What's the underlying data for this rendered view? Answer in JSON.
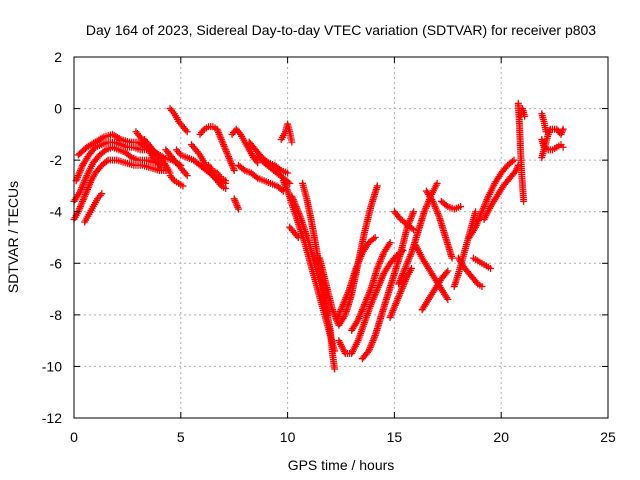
{
  "chart_data": {
    "type": "scatter",
    "title": "Day 164 of 2023, Sidereal Day-to-day VTEC variation (SDTVAR) for receiver p803",
    "xlabel": "GPS time / hours",
    "ylabel": "SDTVAR / TECUs",
    "xlim": [
      0,
      25
    ],
    "ylim": [
      -12,
      2
    ],
    "xticks": [
      0,
      5,
      10,
      15,
      20,
      25
    ],
    "yticks": [
      -12,
      -10,
      -8,
      -6,
      -4,
      -2,
      0,
      2
    ],
    "xtick_labels": [
      "0",
      "5",
      "10",
      "15",
      "20",
      "25"
    ],
    "ytick_labels": [
      "-12",
      "-10",
      "-8",
      "-6",
      "-4",
      "-2",
      "0",
      "2"
    ],
    "grid": true,
    "marker": "plus",
    "color": "#ff0000",
    "series": [
      {
        "x": [
          0.0,
          0.2,
          0.4,
          0.6,
          0.8,
          1.0,
          1.3,
          1.6,
          2.0,
          2.4,
          2.8,
          3.2,
          3.6,
          4.0,
          4.3
        ],
        "y": [
          -4.3,
          -4.0,
          -3.6,
          -3.2,
          -2.8,
          -2.5,
          -2.2,
          -2.0,
          -2.0,
          -2.1,
          -2.2,
          -2.2,
          -2.3,
          -2.4,
          -2.4
        ]
      },
      {
        "x": [
          0.0,
          0.3,
          0.6,
          0.9,
          1.2,
          1.5,
          1.8,
          2.1,
          2.4,
          2.7,
          3.0,
          3.4,
          3.8
        ],
        "y": [
          -3.6,
          -3.2,
          -2.6,
          -2.1,
          -1.8,
          -1.6,
          -1.5,
          -1.6,
          -1.7,
          -1.9,
          -2.0,
          -2.0,
          -2.1
        ]
      },
      {
        "x": [
          0.1,
          0.4,
          0.7,
          1.0,
          1.3,
          1.6,
          1.9,
          2.2,
          2.5,
          2.8,
          3.1,
          3.4
        ],
        "y": [
          -2.8,
          -2.2,
          -1.8,
          -1.5,
          -1.4,
          -1.3,
          -1.3,
          -1.4,
          -1.5,
          -1.5,
          -1.6,
          -1.6
        ]
      },
      {
        "x": [
          0.5,
          0.7,
          0.9,
          1.1,
          1.3
        ],
        "y": [
          -4.4,
          -4.1,
          -3.8,
          -3.5,
          -3.3
        ]
      },
      {
        "x": [
          0.2,
          0.6,
          1.0,
          1.4,
          1.8,
          2.2,
          2.6,
          3.0,
          3.4,
          3.8,
          4.2,
          4.6,
          5.0
        ],
        "y": [
          -1.8,
          -1.5,
          -1.3,
          -1.1,
          -1.0,
          -1.2,
          -1.3,
          -1.3,
          -1.5,
          -1.7,
          -1.9,
          -2.0,
          -2.2
        ]
      },
      {
        "x": [
          2.9,
          3.1,
          3.3,
          3.5,
          3.7,
          3.9,
          4.1
        ],
        "y": [
          -0.9,
          -1.1,
          -1.3,
          -1.6,
          -1.9,
          -2.1,
          -2.3
        ]
      },
      {
        "x": [
          3.3,
          3.5,
          3.7,
          3.9,
          4.1,
          4.3,
          4.5
        ],
        "y": [
          -1.2,
          -1.4,
          -1.6,
          -1.8,
          -2.0,
          -2.2,
          -2.5
        ]
      },
      {
        "x": [
          4.3,
          4.5,
          4.7,
          4.9,
          5.1,
          5.3
        ],
        "y": [
          -1.6,
          -1.8,
          -2.0,
          -2.2,
          -2.4,
          -2.6
        ]
      },
      {
        "x": [
          4.5,
          4.7,
          4.9,
          5.1,
          5.3
        ],
        "y": [
          0.0,
          -0.2,
          -0.5,
          -0.7,
          -0.9
        ]
      },
      {
        "x": [
          4.5,
          4.7,
          4.9,
          5.1
        ],
        "y": [
          -2.6,
          -2.8,
          -2.9,
          -3.0
        ]
      },
      {
        "x": [
          4.8,
          5.0,
          5.3,
          5.6,
          5.9,
          6.2,
          6.5,
          6.8,
          7.1
        ],
        "y": [
          -1.6,
          -1.8,
          -1.9,
          -2.0,
          -2.2,
          -2.4,
          -2.6,
          -2.8,
          -2.9
        ]
      },
      {
        "x": [
          5.5,
          5.7,
          5.9,
          6.1,
          6.3,
          6.5,
          6.7,
          6.9,
          7.1
        ],
        "y": [
          -1.4,
          -1.6,
          -1.8,
          -2.1,
          -2.4,
          -2.6,
          -2.8,
          -3.0,
          -3.1
        ]
      },
      {
        "x": [
          5.9,
          6.1,
          6.3,
          6.5,
          6.7,
          6.9,
          7.1,
          7.3,
          7.5
        ],
        "y": [
          -1.0,
          -0.8,
          -0.7,
          -0.7,
          -0.8,
          -1.2,
          -1.6,
          -2.0,
          -2.4
        ]
      },
      {
        "x": [
          6.3,
          6.5,
          6.7,
          6.9,
          7.1
        ],
        "y": [
          -2.2,
          -2.4,
          -2.5,
          -2.7,
          -2.8
        ]
      },
      {
        "x": [
          7.5,
          7.6,
          7.7
        ],
        "y": [
          -3.5,
          -3.7,
          -3.9
        ]
      },
      {
        "x": [
          7.4,
          7.6,
          7.8,
          8.0,
          8.2,
          8.4,
          8.6
        ],
        "y": [
          -1.0,
          -0.8,
          -1.0,
          -1.3,
          -1.6,
          -1.9,
          -2.1
        ]
      },
      {
        "x": [
          7.7,
          8.0,
          8.3,
          8.6,
          8.9,
          9.2,
          9.5,
          9.8
        ],
        "y": [
          -2.2,
          -2.4,
          -2.5,
          -2.7,
          -2.8,
          -2.9,
          -3.0,
          -3.2
        ]
      },
      {
        "x": [
          8.2,
          8.5,
          8.8,
          9.1,
          9.4,
          9.7,
          10.0
        ],
        "y": [
          -1.3,
          -1.6,
          -1.9,
          -2.1,
          -2.2,
          -2.4,
          -2.5
        ]
      },
      {
        "x": [
          8.6,
          8.9,
          9.2,
          9.5,
          9.8,
          10.1
        ],
        "y": [
          -1.8,
          -2.1,
          -2.3,
          -2.5,
          -2.7,
          -2.9
        ]
      },
      {
        "x": [
          9.7,
          9.9,
          10.0,
          10.1,
          10.2
        ],
        "y": [
          -1.2,
          -0.9,
          -0.6,
          -0.9,
          -1.3
        ]
      },
      {
        "x": [
          9.8,
          10.0,
          10.2,
          10.4,
          10.6,
          10.8,
          11.0,
          11.2,
          11.4,
          11.6,
          11.8,
          12.0,
          12.2
        ],
        "y": [
          -2.8,
          -3.2,
          -3.7,
          -4.2,
          -4.7,
          -5.2,
          -5.8,
          -6.4,
          -7.0,
          -7.6,
          -8.2,
          -8.8,
          -9.4
        ]
      },
      {
        "x": [
          10.2,
          10.4,
          10.6,
          10.8,
          11.0,
          11.2,
          11.4,
          11.6,
          11.8,
          12.0,
          12.1,
          12.2
        ],
        "y": [
          -3.4,
          -3.8,
          -4.2,
          -4.7,
          -5.2,
          -5.8,
          -6.4,
          -7.0,
          -7.8,
          -8.6,
          -9.5,
          -10.1
        ]
      },
      {
        "x": [
          10.7,
          10.9,
          11.1,
          11.3,
          11.5,
          11.7,
          11.9
        ],
        "y": [
          -2.9,
          -3.5,
          -4.3,
          -5.2,
          -6.2,
          -7.2,
          -8.0
        ]
      },
      {
        "x": [
          10.1,
          10.3,
          10.5
        ],
        "y": [
          -4.6,
          -4.8,
          -5.0
        ]
      },
      {
        "x": [
          11.5,
          11.8,
          12.1,
          12.4,
          12.7,
          13.0,
          13.3,
          13.6,
          13.9,
          14.2
        ],
        "y": [
          -5.8,
          -6.8,
          -7.8,
          -8.4,
          -8.0,
          -7.2,
          -6.0,
          -4.8,
          -3.8,
          -3.0
        ]
      },
      {
        "x": [
          12.3,
          12.6,
          12.9,
          13.2,
          13.5,
          13.8,
          14.1
        ],
        "y": [
          -8.2,
          -7.6,
          -7.0,
          -6.2,
          -5.6,
          -5.2,
          -5.0
        ]
      },
      {
        "x": [
          12.4,
          12.7,
          13.0,
          13.3,
          13.6,
          13.9,
          14.2,
          14.5,
          14.8,
          15.1,
          15.4
        ],
        "y": [
          -9.0,
          -9.5,
          -9.5,
          -9.0,
          -8.3,
          -7.6,
          -7.0,
          -6.4,
          -6.0,
          -5.7,
          -5.5
        ]
      },
      {
        "x": [
          13.0,
          13.3,
          13.6,
          13.9,
          14.2,
          14.5,
          14.8
        ],
        "y": [
          -8.6,
          -8.2,
          -7.6,
          -7.0,
          -6.2,
          -5.6,
          -5.2
        ]
      },
      {
        "x": [
          13.5,
          13.8,
          14.1,
          14.4,
          14.7,
          15.0,
          15.3,
          15.6,
          15.9
        ],
        "y": [
          -9.7,
          -9.4,
          -8.8,
          -8.0,
          -7.2,
          -6.4,
          -5.6,
          -4.6,
          -4.0
        ]
      },
      {
        "x": [
          14.8,
          15.0,
          15.2,
          15.4,
          15.6,
          15.8
        ],
        "y": [
          -8.1,
          -7.7,
          -7.3,
          -6.9,
          -6.5,
          -6.2
        ]
      },
      {
        "x": [
          15.2,
          15.5,
          15.8,
          16.1,
          16.4,
          16.7,
          17.0
        ],
        "y": [
          -6.8,
          -6.2,
          -5.6,
          -4.8,
          -4.0,
          -3.4,
          -2.9
        ]
      },
      {
        "x": [
          15.0,
          15.3,
          15.6,
          15.9
        ],
        "y": [
          -4.0,
          -4.3,
          -4.5,
          -4.7
        ]
      },
      {
        "x": [
          16.0,
          16.3,
          16.6,
          16.9,
          17.2,
          17.5
        ],
        "y": [
          -5.3,
          -5.8,
          -6.2,
          -6.6,
          -7.0,
          -7.4
        ]
      },
      {
        "x": [
          16.3,
          16.6,
          16.9,
          17.2,
          17.5
        ],
        "y": [
          -7.8,
          -7.4,
          -7.0,
          -6.6,
          -6.3
        ]
      },
      {
        "x": [
          16.5,
          16.8,
          17.1,
          17.4,
          17.7
        ],
        "y": [
          -3.2,
          -3.6,
          -4.2,
          -5.0,
          -5.8
        ]
      },
      {
        "x": [
          17.2,
          17.5,
          17.8,
          18.1
        ],
        "y": [
          -3.6,
          -3.8,
          -3.9,
          -3.8
        ]
      },
      {
        "x": [
          17.8,
          18.0,
          18.2,
          18.4,
          18.6,
          18.8
        ],
        "y": [
          -6.9,
          -6.4,
          -5.8,
          -5.2,
          -4.6,
          -4.0
        ]
      },
      {
        "x": [
          18.0,
          18.3,
          18.6,
          18.9,
          19.1
        ],
        "y": [
          -5.8,
          -6.2,
          -6.5,
          -6.8,
          -6.9
        ]
      },
      {
        "x": [
          18.5,
          18.8,
          19.1,
          19.4,
          19.7,
          20.0,
          20.3,
          20.6
        ],
        "y": [
          -5.0,
          -4.6,
          -4.0,
          -3.4,
          -2.9,
          -2.5,
          -2.2,
          -2.0
        ]
      },
      {
        "x": [
          18.7,
          18.9,
          19.1,
          19.3,
          19.5
        ],
        "y": [
          -5.8,
          -5.9,
          -6.0,
          -6.1,
          -6.2
        ]
      },
      {
        "x": [
          19.2,
          19.5,
          19.8,
          20.1,
          20.4,
          20.7,
          20.8
        ],
        "y": [
          -4.3,
          -3.8,
          -3.4,
          -3.0,
          -2.7,
          -2.4,
          -2.2
        ]
      },
      {
        "x": [
          20.8,
          20.85,
          20.9,
          20.95,
          21.0,
          21.05
        ],
        "y": [
          0.2,
          -0.5,
          -1.5,
          -2.4,
          -3.0,
          -3.6
        ]
      },
      {
        "x": [
          20.9,
          21.0,
          21.1
        ],
        "y": [
          -0.3,
          0.0,
          -0.3
        ]
      },
      {
        "x": [
          21.9,
          22.0,
          22.1,
          22.2,
          22.3,
          22.4,
          22.6,
          22.8,
          22.9
        ],
        "y": [
          -1.9,
          -1.6,
          -1.3,
          -1.0,
          -0.8,
          -0.8,
          -0.8,
          -1.0,
          -0.8
        ]
      },
      {
        "x": [
          21.9,
          22.0,
          22.2,
          22.4,
          22.6,
          22.8,
          22.9
        ],
        "y": [
          -1.2,
          -1.5,
          -1.6,
          -1.6,
          -1.5,
          -1.4,
          -1.5
        ]
      },
      {
        "x": [
          21.9,
          22.0,
          22.1
        ],
        "y": [
          -0.2,
          -0.5,
          -0.9
        ]
      }
    ]
  }
}
